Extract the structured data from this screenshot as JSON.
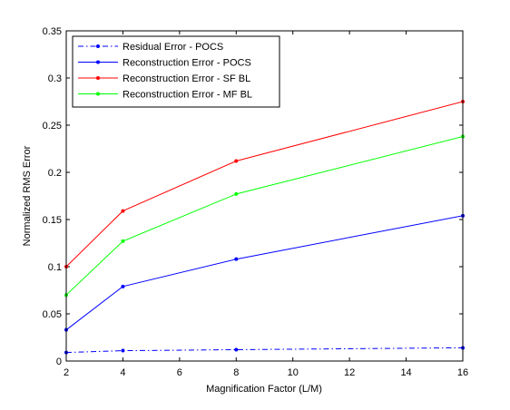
{
  "chart_data": {
    "type": "line",
    "title": "",
    "xlabel": "Magnification Factor (L/M)",
    "ylabel": "Normalized RMS Error",
    "xlim": [
      2,
      16
    ],
    "ylim": [
      0,
      0.35
    ],
    "xticks": [
      2,
      4,
      6,
      8,
      10,
      12,
      14,
      16
    ],
    "yticks": [
      0,
      0.05,
      0.1,
      0.15,
      0.2,
      0.25,
      0.3,
      0.35
    ],
    "xtick_labels": [
      "2",
      "4",
      "6",
      "8",
      "10",
      "12",
      "14",
      "16"
    ],
    "ytick_labels": [
      "0",
      "0.05",
      "0.1",
      "0.15",
      "0.2",
      "0.25",
      "0.3",
      "0.35"
    ],
    "grid": false,
    "legend_position": "top-left",
    "x": [
      2,
      4,
      8,
      16
    ],
    "series": [
      {
        "name": "Residual Error - POCS",
        "values": [
          0.009,
          0.011,
          0.012,
          0.014
        ],
        "color": "#0000ff",
        "line_style": "dash-dot",
        "marker": "dot"
      },
      {
        "name": "Reconstruction Error - POCS",
        "values": [
          0.033,
          0.079,
          0.108,
          0.154
        ],
        "color": "#0000ff",
        "line_style": "solid",
        "marker": "dot"
      },
      {
        "name": "Reconstruction Error - SF BL",
        "values": [
          0.1,
          0.159,
          0.212,
          0.275
        ],
        "color": "#ff0000",
        "line_style": "solid",
        "marker": "dot"
      },
      {
        "name": "Reconstruction Error - MF BL",
        "values": [
          0.07,
          0.127,
          0.177,
          0.238
        ],
        "color": "#00ff00",
        "line_style": "solid",
        "marker": "dot"
      }
    ]
  }
}
